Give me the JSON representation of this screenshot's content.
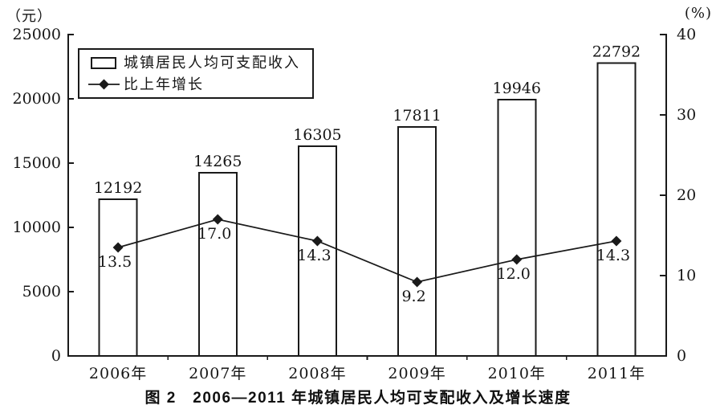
{
  "chart_data": {
    "type": "bar",
    "subtype": "bar+line combo, dual axis",
    "categories": [
      "2006年",
      "2007年",
      "2008年",
      "2009年",
      "2010年",
      "2011年"
    ],
    "series": [
      {
        "name": "城镇居民人均可支配收入",
        "type": "bar",
        "axis": "left",
        "values": [
          12192,
          14265,
          16305,
          17811,
          19946,
          22792
        ],
        "labels": [
          "12192",
          "14265",
          "16305",
          "17811",
          "19946",
          "22792"
        ]
      },
      {
        "name": "比上年增长",
        "type": "line",
        "axis": "right",
        "marker": "diamond",
        "values": [
          13.5,
          17.0,
          14.3,
          9.2,
          12.0,
          14.3
        ],
        "labels": [
          "13.5",
          "17.0",
          "14.3",
          "9.2",
          "12.0",
          "14.3"
        ]
      }
    ],
    "left_axis": {
      "unit": "（元）",
      "min": 0,
      "max": 25000,
      "tick_labels": [
        "0",
        "5000",
        "10000",
        "15000",
        "20000",
        "25000"
      ]
    },
    "right_axis": {
      "unit": "(%)",
      "min": 0,
      "max": 40,
      "tick_labels": [
        "0",
        "10",
        "20",
        "30",
        "40"
      ]
    },
    "legend": {
      "position": "inside-top-left"
    },
    "caption": "图 2　2006—2011 年城镇居民人均可支配收入及增长速度",
    "grid": false,
    "colors": {
      "ink": "#1a1a1a",
      "bar_fill": "#ffffff",
      "background": "#ffffff"
    }
  }
}
